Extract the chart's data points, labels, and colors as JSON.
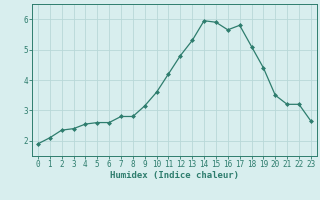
{
  "x": [
    0,
    1,
    2,
    3,
    4,
    5,
    6,
    7,
    8,
    9,
    10,
    11,
    12,
    13,
    14,
    15,
    16,
    17,
    18,
    19,
    20,
    21,
    22,
    23
  ],
  "y": [
    1.9,
    2.1,
    2.35,
    2.4,
    2.55,
    2.6,
    2.6,
    2.8,
    2.8,
    3.15,
    3.6,
    4.2,
    4.8,
    5.3,
    5.95,
    5.9,
    5.65,
    5.8,
    5.1,
    4.4,
    3.5,
    3.2,
    3.2,
    2.65
  ],
  "line_color": "#2e7d6e",
  "marker": "D",
  "marker_size": 2.0,
  "linewidth": 0.9,
  "xlabel": "Humidex (Indice chaleur)",
  "xlabel_fontsize": 6.5,
  "xlim": [
    -0.5,
    23.5
  ],
  "ylim": [
    1.5,
    6.5
  ],
  "yticks": [
    2,
    3,
    4,
    5,
    6
  ],
  "xticks": [
    0,
    1,
    2,
    3,
    4,
    5,
    6,
    7,
    8,
    9,
    10,
    11,
    12,
    13,
    14,
    15,
    16,
    17,
    18,
    19,
    20,
    21,
    22,
    23
  ],
  "grid_color": "#b8d8d8",
  "bg_color": "#d8eeee",
  "tick_label_fontsize": 5.5,
  "tick_color": "#2e7d6e",
  "spine_color": "#2e7d6e"
}
